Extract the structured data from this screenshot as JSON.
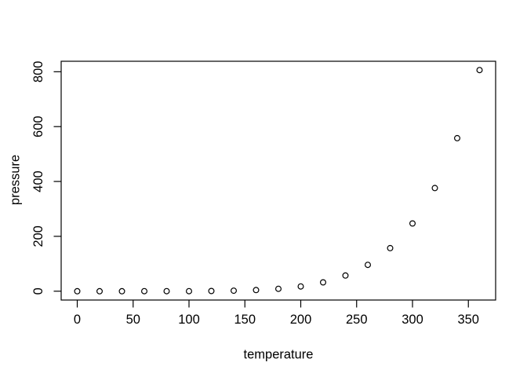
{
  "chart_data": {
    "type": "scatter",
    "title": "",
    "xlabel": "temperature",
    "ylabel": "pressure",
    "x": [
      0,
      20,
      40,
      60,
      80,
      100,
      120,
      140,
      160,
      180,
      200,
      220,
      240,
      260,
      280,
      300,
      320,
      340,
      360
    ],
    "y": [
      0.0002,
      0.0012,
      0.006,
      0.03,
      0.09,
      0.27,
      0.75,
      1.85,
      4.2,
      8.8,
      17.3,
      32.1,
      57,
      96,
      157,
      247,
      376,
      558,
      806
    ],
    "x_ticks": [
      0,
      50,
      100,
      150,
      200,
      250,
      300,
      350
    ],
    "y_ticks": [
      0,
      200,
      400,
      600,
      800
    ],
    "xlim": [
      -14.4,
      374.4
    ],
    "ylim": [
      -32.2,
      838.2
    ],
    "grid": false,
    "legend": "none",
    "marker": "open-circle",
    "marker_color": "#000000",
    "axis_color": "#000000",
    "background_color": "#ffffff"
  }
}
